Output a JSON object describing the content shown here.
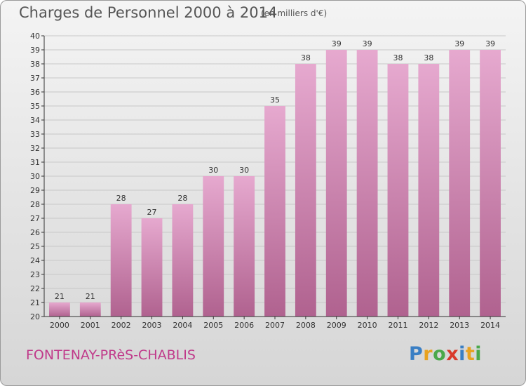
{
  "header": {
    "title": "Charges de Personnel 2000 à 2014",
    "subtitle": "(en milliers d'€)"
  },
  "footer": {
    "commune": "FONTENAY-PRèS-CHABLIS",
    "logo_text": "Proxiti",
    "logo_colors": [
      "#3a7fc4",
      "#e8a21f",
      "#4aa84a",
      "#d9392b",
      "#3a7fc4",
      "#e8a21f",
      "#4aa84a"
    ]
  },
  "colors": {
    "bar_top": "#e6a9cf",
    "bar_bottom": "#b0628f",
    "grid": "#c8c8c8",
    "axis": "#333333"
  },
  "chart_data": {
    "type": "bar",
    "title": "Charges de Personnel 2000 à 2014",
    "subtitle": "(en milliers d'€)",
    "categories": [
      "2000",
      "2001",
      "2002",
      "2003",
      "2004",
      "2005",
      "2006",
      "2007",
      "2008",
      "2009",
      "2010",
      "2011",
      "2012",
      "2013",
      "2014"
    ],
    "values": [
      21,
      21,
      28,
      27,
      28,
      30,
      30,
      35,
      38,
      39,
      39,
      38,
      38,
      39,
      39
    ],
    "ylim": [
      20,
      40
    ],
    "ytick_step": 1,
    "grid": true,
    "xlabel": "",
    "ylabel": ""
  }
}
